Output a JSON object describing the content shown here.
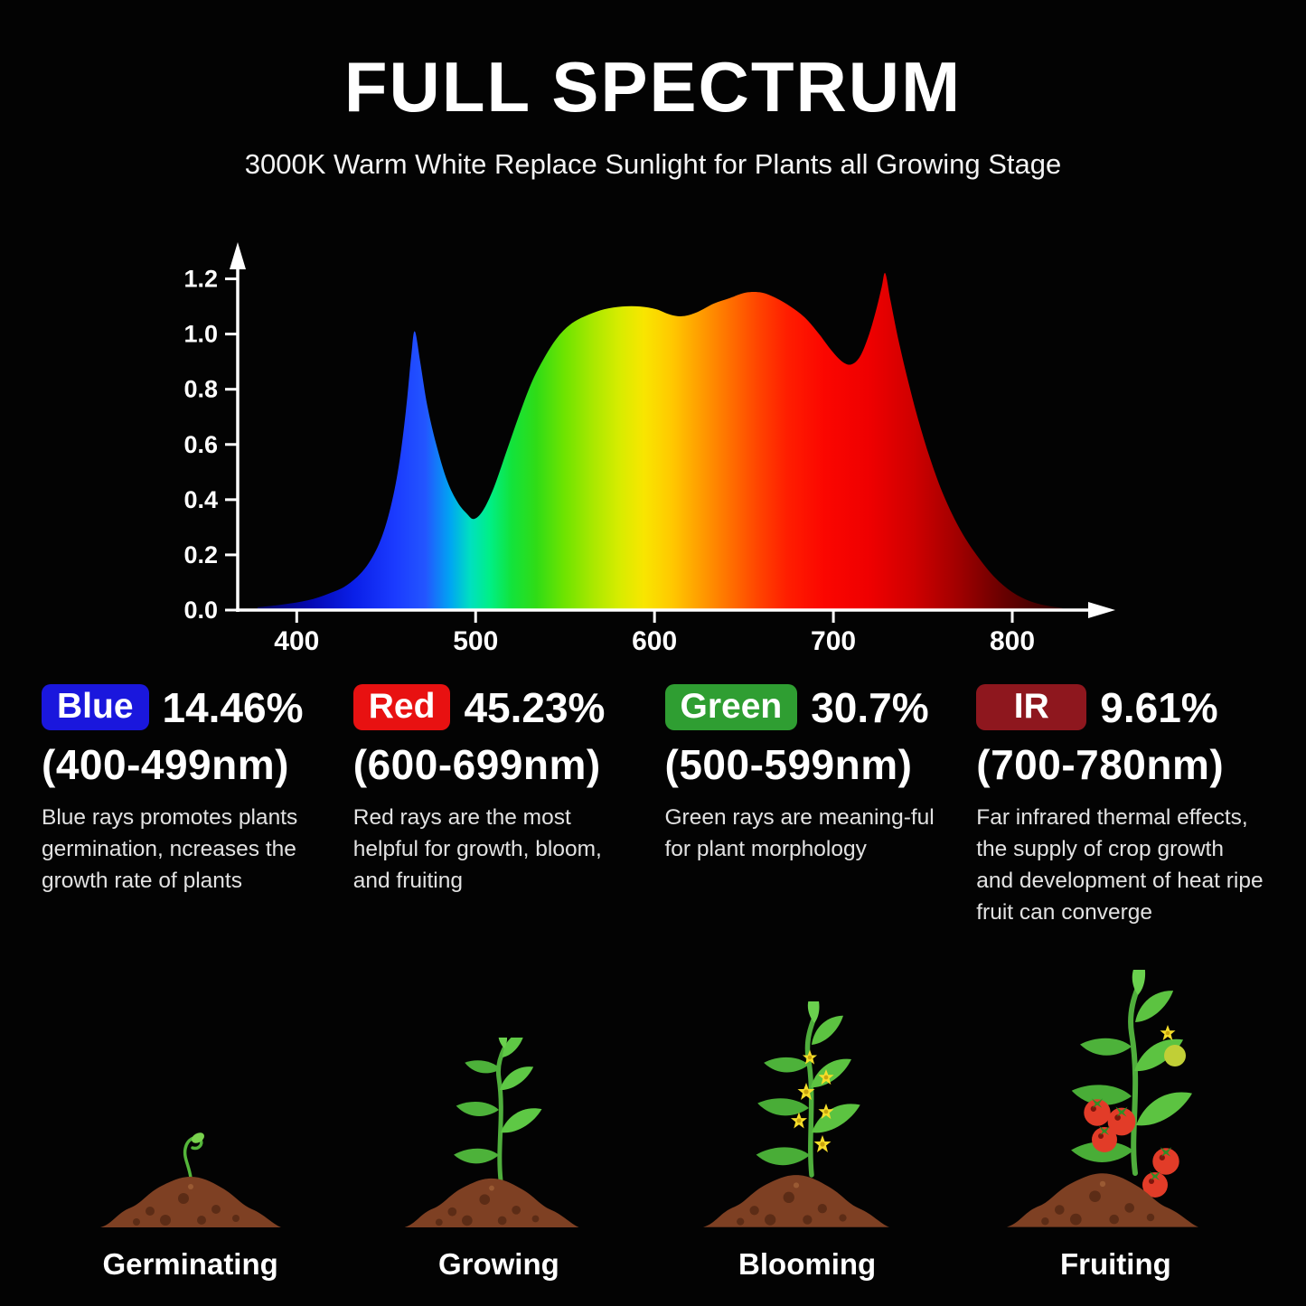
{
  "page": {
    "title": "FULL SPECTRUM",
    "subtitle": "3000K Warm White Replace Sunlight for Plants all Growing Stage",
    "background_color": "#030303"
  },
  "chart_data": {
    "type": "area",
    "title": "FULL SPECTRUM",
    "xlabel": "",
    "ylabel": "",
    "xlim": [
      367,
      849
    ],
    "ylim": [
      0,
      1.3
    ],
    "x_ticks": [
      400,
      500,
      600,
      700,
      800
    ],
    "y_ticks": [
      0.0,
      0.2,
      0.4,
      0.6,
      0.8,
      1.0,
      1.2
    ],
    "grid": false,
    "legend_position": "none",
    "axis_color": "#ffffff",
    "points": [
      [
        378,
        0.01
      ],
      [
        392,
        0.02
      ],
      [
        406,
        0.035
      ],
      [
        418,
        0.06
      ],
      [
        428,
        0.09
      ],
      [
        438,
        0.15
      ],
      [
        446,
        0.24
      ],
      [
        452,
        0.36
      ],
      [
        457,
        0.52
      ],
      [
        461,
        0.72
      ],
      [
        464,
        0.92
      ],
      [
        466,
        1.01
      ],
      [
        469,
        0.9
      ],
      [
        473,
        0.74
      ],
      [
        478,
        0.6
      ],
      [
        484,
        0.47
      ],
      [
        490,
        0.39
      ],
      [
        495,
        0.35
      ],
      [
        499,
        0.33
      ],
      [
        504,
        0.36
      ],
      [
        510,
        0.44
      ],
      [
        517,
        0.57
      ],
      [
        524,
        0.7
      ],
      [
        531,
        0.82
      ],
      [
        538,
        0.91
      ],
      [
        546,
        0.99
      ],
      [
        554,
        1.04
      ],
      [
        563,
        1.07
      ],
      [
        572,
        1.09
      ],
      [
        582,
        1.1
      ],
      [
        592,
        1.1
      ],
      [
        601,
        1.09
      ],
      [
        609,
        1.07
      ],
      [
        616,
        1.065
      ],
      [
        624,
        1.08
      ],
      [
        633,
        1.11
      ],
      [
        642,
        1.13
      ],
      [
        651,
        1.15
      ],
      [
        660,
        1.15
      ],
      [
        668,
        1.13
      ],
      [
        676,
        1.1
      ],
      [
        684,
        1.06
      ],
      [
        692,
        1.0
      ],
      [
        699,
        0.94
      ],
      [
        705,
        0.9
      ],
      [
        710,
        0.89
      ],
      [
        715,
        0.92
      ],
      [
        720,
        1.0
      ],
      [
        724,
        1.09
      ],
      [
        727,
        1.17
      ],
      [
        729,
        1.22
      ],
      [
        732,
        1.12
      ],
      [
        736,
        0.99
      ],
      [
        741,
        0.85
      ],
      [
        747,
        0.7
      ],
      [
        754,
        0.55
      ],
      [
        762,
        0.41
      ],
      [
        771,
        0.29
      ],
      [
        780,
        0.2
      ],
      [
        790,
        0.12
      ],
      [
        800,
        0.065
      ],
      [
        810,
        0.032
      ],
      [
        820,
        0.015
      ],
      [
        828,
        0.008
      ]
    ],
    "gradient_stops": [
      [
        378,
        "#02035f"
      ],
      [
        408,
        "#0409b4"
      ],
      [
        432,
        "#0a1fe8"
      ],
      [
        455,
        "#1b3bff"
      ],
      [
        472,
        "#2356ff"
      ],
      [
        486,
        "#00a6f2"
      ],
      [
        497,
        "#00e0c0"
      ],
      [
        508,
        "#00ef86"
      ],
      [
        520,
        "#12e33c"
      ],
      [
        534,
        "#30dc16"
      ],
      [
        550,
        "#6fe400"
      ],
      [
        566,
        "#abe800"
      ],
      [
        580,
        "#d6ec00"
      ],
      [
        594,
        "#f8e600"
      ],
      [
        610,
        "#ffc800"
      ],
      [
        626,
        "#ff9c00"
      ],
      [
        642,
        "#ff7000"
      ],
      [
        658,
        "#ff4400"
      ],
      [
        674,
        "#ff1e00"
      ],
      [
        695,
        "#fb0600"
      ],
      [
        720,
        "#ef0000"
      ],
      [
        745,
        "#cf0000"
      ],
      [
        770,
        "#a00000"
      ],
      [
        795,
        "#680000"
      ],
      [
        828,
        "#2d0000"
      ]
    ]
  },
  "legend": {
    "items": [
      {
        "label": "Blue",
        "badge_color": "#1a17dd",
        "pct": "14.46%",
        "range": "(400-499nm)",
        "desc": "Blue rays promotes plants germination, ncreases the growth rate of plants"
      },
      {
        "label": "Red",
        "badge_color": "#e81111",
        "pct": "45.23%",
        "range": "(600-699nm)",
        "desc": "Red rays are the most helpful for growth, bloom, and fruiting"
      },
      {
        "label": "Green",
        "badge_color": "#2f9e32",
        "pct": "30.7%",
        "range": "(500-599nm)",
        "desc": "Green rays are meaning-ful for plant morphology"
      },
      {
        "label": "IR",
        "badge_color": "#8e171e",
        "pct": "9.61%",
        "range": "(700-780nm)",
        "desc": "Far infrared thermal effects, the supply of crop growth and development of heat ripe fruit can converge"
      }
    ]
  },
  "stages": {
    "items": [
      {
        "label": "Germinating"
      },
      {
        "label": "Growing"
      },
      {
        "label": "Blooming"
      },
      {
        "label": "Fruiting"
      }
    ]
  }
}
